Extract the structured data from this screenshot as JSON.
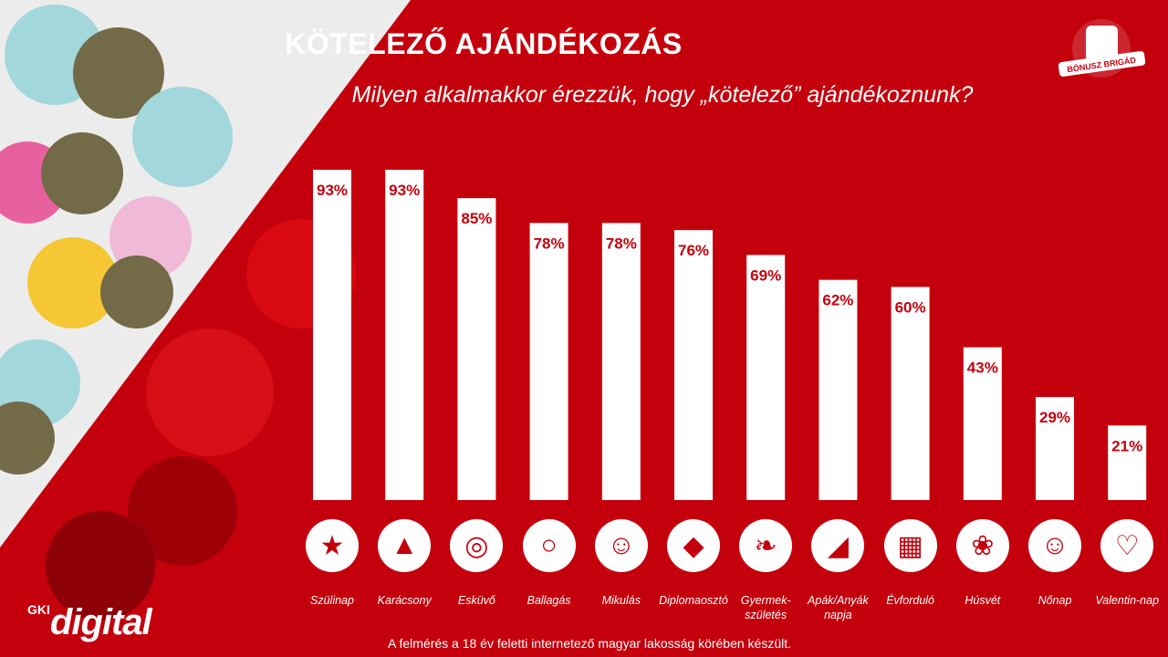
{
  "header": {
    "title": "KÖTELEZŐ AJÁNDÉKOZÁS",
    "subtitle": "Milyen alkalmakkor érezzük, hogy „kötelező” ajándékoznunk?"
  },
  "chart_data": {
    "type": "bar",
    "categories": [
      "Szülinap",
      "Karácsony",
      "Esküvő",
      "Ballagás",
      "Mikulás",
      "Diplomaosztó",
      "Gyermek-\nszületés",
      "Apák/Anyák\nnapja",
      "Évforduló",
      "Húsvét",
      "Nőnap",
      "Valentin-nap"
    ],
    "values": [
      93,
      93,
      85,
      78,
      78,
      76,
      69,
      62,
      60,
      43,
      29,
      21
    ],
    "data_labels": [
      "93%",
      "93%",
      "85%",
      "78%",
      "78%",
      "76%",
      "69%",
      "62%",
      "60%",
      "43%",
      "29%",
      "21%"
    ],
    "ylim": [
      0,
      100
    ],
    "grid": false,
    "colors": {
      "bar": "#ffffff",
      "label": "#c4000c",
      "background": "#c4000c"
    }
  },
  "icons": [
    "cake-icon",
    "christmas-tree-icon",
    "rings-icon",
    "balloons-icon",
    "santa-icon",
    "graduation-cap-icon",
    "stork-icon",
    "santa-hat-icon",
    "calendar-heart-icon",
    "bunny-icon",
    "woman-icon",
    "heart-icon"
  ],
  "footer": {
    "note": "A felmérés a 18 év feletti internetező magyar lakosság körében készült."
  },
  "brand": {
    "logo_gk": "GKI",
    "logo_digital": "digital",
    "badge": "BÓNUSZ BRIGÁD"
  }
}
